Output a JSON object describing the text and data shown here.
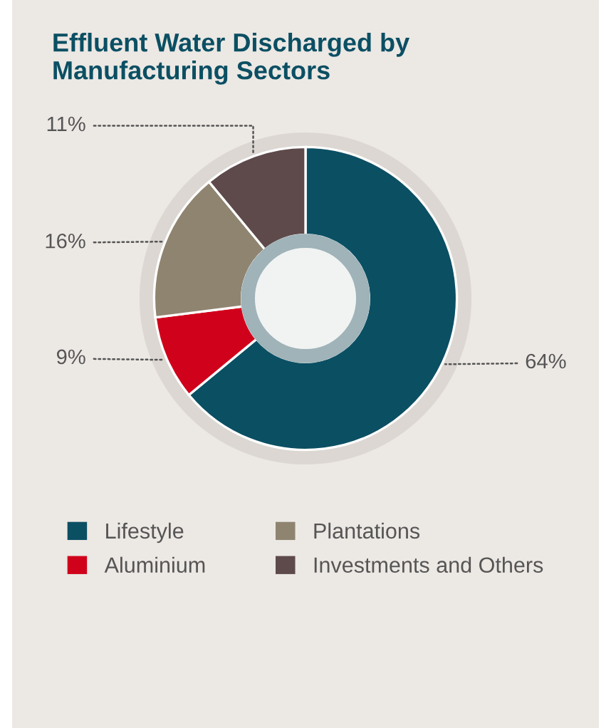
{
  "chart_data": {
    "type": "donut",
    "title": "Effluent Water Discharged by\nManufacturing Sectors",
    "categories": [
      "Lifestyle",
      "Aluminium",
      "Plantations",
      "Investments and Others"
    ],
    "values": [
      64,
      9,
      16,
      11
    ],
    "colors": [
      "#0b4f63",
      "#d0021b",
      "#8f8470",
      "#5e4a4b"
    ],
    "value_labels": [
      "64%",
      "9%",
      "16%",
      "11%"
    ],
    "legend": "bottom"
  }
}
